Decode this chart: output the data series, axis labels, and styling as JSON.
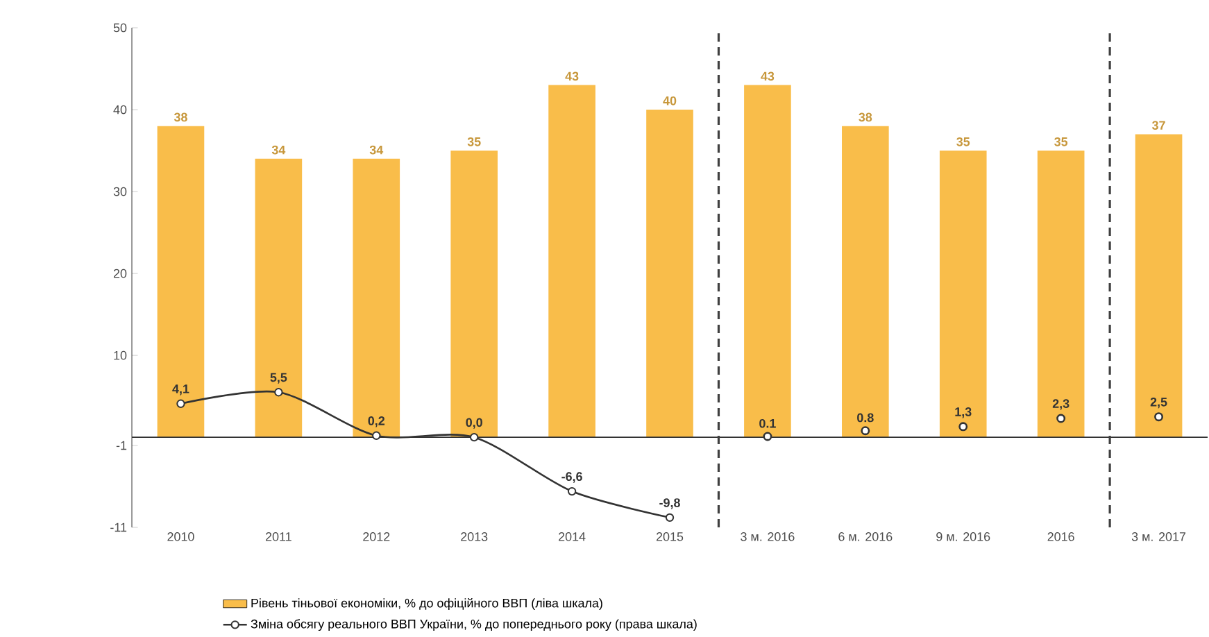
{
  "chart_data": {
    "type": "bar",
    "categories": [
      "2010",
      "2011",
      "2012",
      "2013",
      "2014",
      "2015",
      "3 м. 2016",
      "6 м. 2016",
      "9 м. 2016",
      "2016",
      "3 м. 2017"
    ],
    "series": [
      {
        "name": "Рівень тіньової економіки, % до офіційного ВВП (ліва шкала)",
        "color": "#f9bd4a",
        "values": [
          38,
          34,
          34,
          35,
          43,
          40,
          43,
          38,
          35,
          35,
          37
        ],
        "value_labels": [
          "38",
          "34",
          "34",
          "35",
          "43",
          "40",
          "43",
          "38",
          "35",
          "35",
          "37"
        ]
      },
      {
        "name": "Зміна обсягу реального ВВП України, % до попереднього року (права шкала)",
        "type": "line",
        "color": "#333333",
        "values": [
          4.1,
          5.5,
          0.2,
          0.0,
          -6.6,
          -9.8,
          null,
          null,
          null,
          null,
          null
        ],
        "value_labels": [
          "4,1",
          "5,5",
          "0,2",
          "0,0",
          "-6,6",
          "-9,8",
          null,
          null,
          null,
          null,
          null
        ]
      },
      {
        "type": "scatter",
        "color": "#333333",
        "values": [
          null,
          null,
          null,
          null,
          null,
          null,
          0.1,
          0.8,
          1.3,
          2.3,
          2.5
        ],
        "value_labels": [
          null,
          null,
          null,
          null,
          null,
          null,
          "0.1",
          "0.8",
          "1,3",
          "2,3",
          "2,5"
        ]
      }
    ],
    "ylim": [
      -11,
      50
    ],
    "yticks": [
      -11,
      -1,
      10,
      20,
      30,
      40,
      50
    ],
    "marker": "circle",
    "legend": "bottom"
  }
}
